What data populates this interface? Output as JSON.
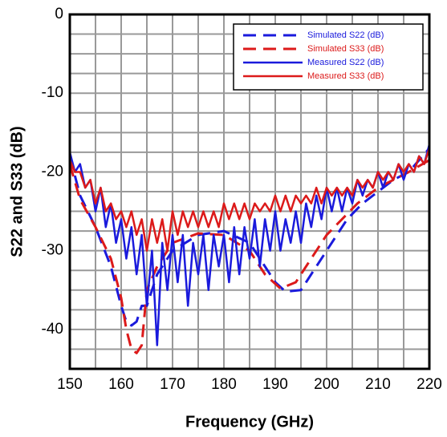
{
  "chart_data": {
    "type": "line",
    "x_label": "Frequency (GHz)",
    "y_label": "S22 and S33 (dB)",
    "xlim": [
      150,
      220
    ],
    "ylim": [
      -45,
      0
    ],
    "xticks": [
      150,
      160,
      170,
      180,
      190,
      200,
      210,
      220
    ],
    "yticks": [
      0,
      -10,
      -20,
      -30,
      -40
    ],
    "minor_xticks": [
      155,
      165,
      175,
      185,
      195,
      205,
      215
    ],
    "minor_yticks": [
      -2.5,
      -5,
      -7.5,
      -12.5,
      -15,
      -17.5,
      -22.5,
      -25,
      -27.5,
      -32.5,
      -35,
      -37.5,
      -42.5
    ],
    "grid": true,
    "grid_color": "#999999",
    "legend_location": "upper right",
    "series": [
      {
        "name": "Simulated S22 (dB)",
        "color": "#1a1adc",
        "dashed": true,
        "x": [
          150,
          152,
          155,
          158,
          160,
          161,
          162,
          163,
          164,
          165,
          167,
          170,
          175,
          180,
          185,
          188,
          190,
          192,
          195,
          198,
          201,
          204,
          207,
          210,
          213,
          216,
          220
        ],
        "values": [
          -18,
          -23,
          -27,
          -32,
          -37,
          -39,
          -39.5,
          -39,
          -37,
          -37,
          -33,
          -30,
          -28,
          -27.5,
          -29,
          -32,
          -34,
          -35.2,
          -35,
          -32,
          -29,
          -26,
          -24,
          -22.5,
          -21,
          -20,
          -17
        ]
      },
      {
        "name": "Simulated S33 (dB)",
        "color": "#dc1a1a",
        "dashed": true,
        "x": [
          150,
          152,
          155,
          158,
          160,
          161,
          162,
          163,
          164,
          165,
          167,
          170,
          175,
          180,
          185,
          188,
          191,
          194,
          197,
          200,
          203,
          206,
          210,
          213,
          216,
          220
        ],
        "values": [
          -19,
          -23.5,
          -27,
          -31,
          -36,
          -40,
          -42.5,
          -43,
          -42,
          -35,
          -32,
          -29,
          -27.8,
          -28,
          -30,
          -33,
          -34.8,
          -34,
          -31,
          -28,
          -26,
          -24,
          -22,
          -21,
          -20,
          -18.5
        ]
      },
      {
        "name": "Measured S22 (dB)",
        "color": "#1a1adc",
        "dashed": false,
        "x": [
          150,
          151,
          152,
          153,
          154,
          155,
          156,
          157,
          158,
          159,
          160,
          161,
          162,
          163,
          164,
          165,
          166,
          167,
          168,
          169,
          170,
          171,
          172,
          173,
          174,
          175,
          176,
          177,
          178,
          179,
          180,
          181,
          182,
          183,
          184,
          185,
          186,
          187,
          188,
          189,
          190,
          191,
          192,
          193,
          194,
          195,
          196,
          197,
          198,
          199,
          200,
          201,
          202,
          203,
          204,
          205,
          206,
          207,
          208,
          209,
          210,
          211,
          212,
          213,
          214,
          215,
          216,
          217,
          218,
          219,
          220
        ],
        "values": [
          -17.5,
          -20,
          -19,
          -22,
          -21,
          -25,
          -22,
          -27,
          -24,
          -29,
          -26,
          -31,
          -27,
          -33,
          -28,
          -37,
          -30,
          -42,
          -29,
          -35,
          -28,
          -34,
          -28,
          -37,
          -29,
          -33,
          -28,
          -35,
          -28,
          -32,
          -28,
          -34,
          -27,
          -33,
          -27,
          -31,
          -26,
          -32,
          -26,
          -30,
          -25,
          -30,
          -26,
          -29,
          -25,
          -29,
          -24,
          -27,
          -23,
          -26,
          -22,
          -25,
          -22,
          -25,
          -22,
          -24,
          -21,
          -23,
          -21,
          -22,
          -20,
          -22,
          -20,
          -21,
          -19,
          -21,
          -19,
          -20,
          -18,
          -19,
          -16.5
        ]
      },
      {
        "name": "Measured S33 (dB)",
        "color": "#dc1a1a",
        "dashed": false,
        "x": [
          150,
          151,
          152,
          153,
          154,
          155,
          156,
          157,
          158,
          159,
          160,
          161,
          162,
          163,
          164,
          165,
          166,
          167,
          168,
          169,
          170,
          171,
          172,
          173,
          174,
          175,
          176,
          177,
          178,
          179,
          180,
          181,
          182,
          183,
          184,
          185,
          186,
          187,
          188,
          189,
          190,
          191,
          192,
          193,
          194,
          195,
          196,
          197,
          198,
          199,
          200,
          201,
          202,
          203,
          204,
          205,
          206,
          207,
          208,
          209,
          210,
          211,
          212,
          213,
          214,
          215,
          216,
          217,
          218,
          219,
          220
        ],
        "values": [
          -18.5,
          -20,
          -20,
          -22,
          -21,
          -24,
          -22,
          -25,
          -24,
          -26,
          -25,
          -27,
          -25,
          -28,
          -26,
          -30,
          -26,
          -29,
          -26,
          -30,
          -25,
          -28,
          -25,
          -27,
          -25,
          -27,
          -25,
          -27,
          -25,
          -27,
          -24,
          -26,
          -24,
          -26,
          -24,
          -26,
          -24,
          -25,
          -24,
          -25,
          -23,
          -25,
          -23,
          -25,
          -23,
          -24,
          -23,
          -24,
          -22,
          -24,
          -22,
          -23,
          -22,
          -23,
          -22,
          -23,
          -21,
          -22,
          -21,
          -22,
          -20,
          -21,
          -20,
          -21,
          -19,
          -20,
          -19,
          -20,
          -18,
          -19,
          -17
        ]
      }
    ]
  }
}
